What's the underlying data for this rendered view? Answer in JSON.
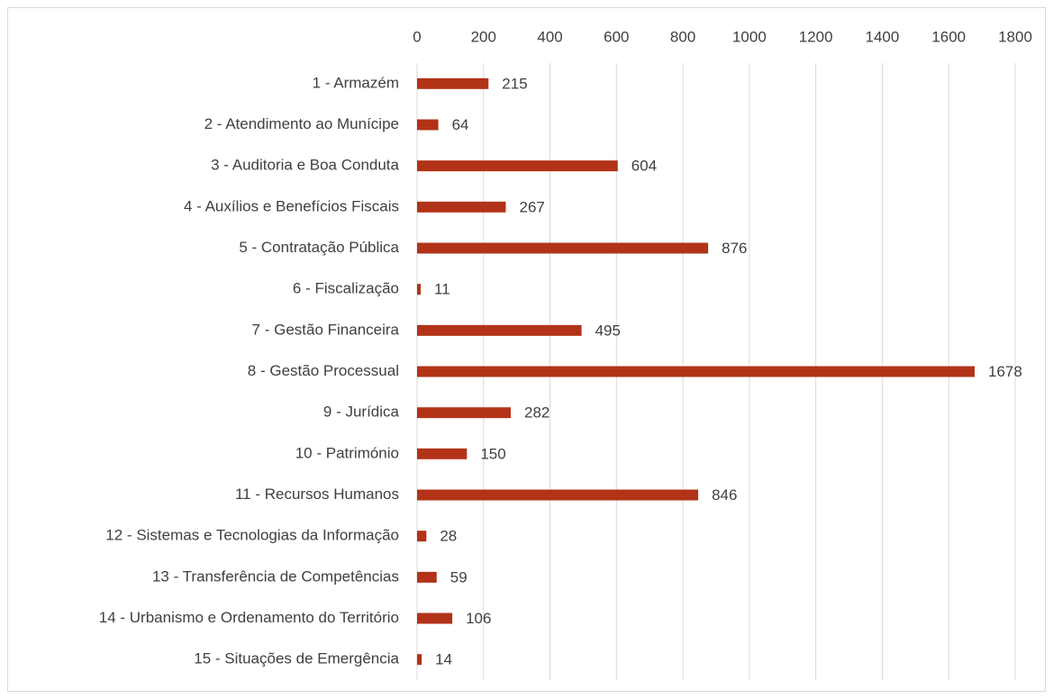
{
  "chart_data": {
    "type": "bar",
    "orientation": "horizontal",
    "categories": [
      "1 - Armazém",
      "2 - Atendimento ao Munícipe",
      "3 - Auditoria e Boa Conduta",
      "4 - Auxílios e Benefícios Fiscais",
      "5 - Contratação Pública",
      "6 - Fiscalização",
      "7 - Gestão Financeira",
      "8 - Gestão Processual",
      "9 - Jurídica",
      "10 - Património",
      "11 - Recursos Humanos",
      "12 - Sistemas e Tecnologias da Informação",
      "13 - Transferência de Competências",
      "14 - Urbanismo e Ordenamento do Território",
      "15 - Situações de Emergência"
    ],
    "values": [
      215,
      64,
      604,
      267,
      876,
      11,
      495,
      1678,
      282,
      150,
      846,
      28,
      59,
      106,
      14
    ],
    "color": "#b23318",
    "xlim": [
      0,
      1800
    ],
    "xticks": [
      0,
      200,
      400,
      600,
      800,
      1000,
      1200,
      1400,
      1600,
      1800
    ],
    "grid": true
  }
}
